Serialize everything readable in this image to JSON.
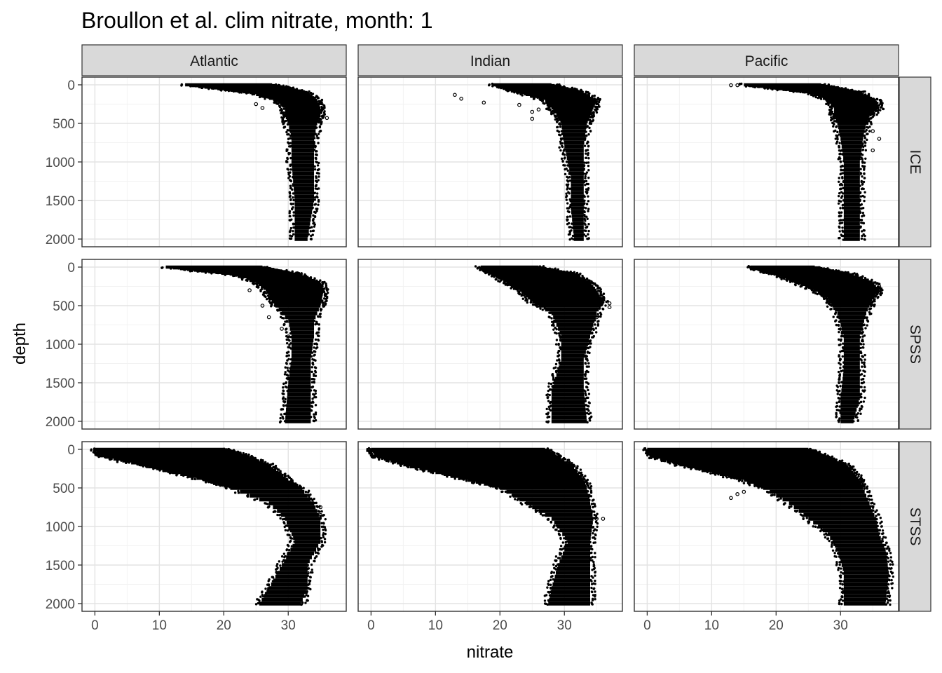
{
  "chart_data": {
    "type": "scatter",
    "title": "Broullon et al. clim nitrate, month: 1",
    "xlabel": "nitrate",
    "ylabel": "depth",
    "xlim": [
      -2,
      39
    ],
    "ylim": [
      2000,
      0
    ],
    "y_reversed": true,
    "xticks": [
      0,
      10,
      20,
      30
    ],
    "yticks": [
      0,
      500,
      1000,
      1500,
      2000
    ],
    "grid": true,
    "point_color": "#000000",
    "strip_fill": "#d9d9d9",
    "facet_cols": [
      "Atlantic",
      "Indian",
      "Pacific"
    ],
    "facet_rows": [
      "ICE",
      "SPSS",
      "STSS"
    ],
    "panels": [
      {
        "col": "Atlantic",
        "row": "ICE",
        "profile": [
          [
            0,
            14,
            27.5
          ],
          [
            100,
            24,
            33
          ],
          [
            200,
            28,
            34.5
          ],
          [
            300,
            29.5,
            35
          ],
          [
            400,
            29.5,
            35
          ],
          [
            500,
            30,
            34.5
          ],
          [
            700,
            30.5,
            34
          ],
          [
            1000,
            30.5,
            34
          ],
          [
            1500,
            31,
            34
          ],
          [
            2000,
            31,
            33
          ]
        ],
        "outliers": [
          [
            36,
            430
          ],
          [
            25,
            250
          ],
          [
            26,
            300
          ]
        ]
      },
      {
        "col": "Indian",
        "row": "ICE",
        "profile": [
          [
            0,
            19,
            28
          ],
          [
            100,
            23,
            33
          ],
          [
            200,
            27,
            35
          ],
          [
            300,
            28,
            34.5
          ],
          [
            400,
            29,
            34
          ],
          [
            500,
            29.5,
            33.5
          ],
          [
            800,
            30,
            33
          ],
          [
            1200,
            31,
            33
          ],
          [
            1600,
            31,
            33
          ],
          [
            2000,
            31.5,
            33
          ]
        ],
        "outliers": [
          [
            13,
            130
          ],
          [
            14,
            180
          ],
          [
            17.5,
            230
          ],
          [
            23,
            260
          ],
          [
            25,
            350
          ],
          [
            26,
            320
          ],
          [
            25,
            440
          ]
        ]
      },
      {
        "col": "Pacific",
        "row": "ICE",
        "profile": [
          [
            0,
            15,
            27
          ],
          [
            100,
            25,
            33
          ],
          [
            200,
            28,
            35.5
          ],
          [
            300,
            29,
            36
          ],
          [
            400,
            29,
            34.5
          ],
          [
            500,
            29.5,
            34
          ],
          [
            700,
            30,
            33.5
          ],
          [
            1000,
            30.5,
            33
          ],
          [
            1500,
            30.5,
            33
          ],
          [
            2000,
            30.5,
            33
          ]
        ],
        "outliers": [
          [
            13,
            5
          ],
          [
            14,
            5
          ],
          [
            35,
            600
          ],
          [
            36,
            700
          ],
          [
            35,
            850
          ],
          [
            33,
            950
          ],
          [
            33,
            1150
          ],
          [
            30,
            450
          ]
        ]
      },
      {
        "col": "Atlantic",
        "row": "SPSS",
        "profile": [
          [
            0,
            11,
            26
          ],
          [
            100,
            22,
            32
          ],
          [
            200,
            25,
            35
          ],
          [
            300,
            26.5,
            35.5
          ],
          [
            500,
            28,
            35
          ],
          [
            700,
            30,
            34
          ],
          [
            900,
            30.5,
            34
          ],
          [
            1200,
            30.5,
            33.5
          ],
          [
            1500,
            30,
            33.5
          ],
          [
            2000,
            29.5,
            33.5
          ]
        ],
        "outliers": [
          [
            24,
            300
          ],
          [
            26,
            500
          ],
          [
            27,
            650
          ],
          [
            29,
            800
          ],
          [
            30,
            900
          ]
        ]
      },
      {
        "col": "Indian",
        "row": "SPSS",
        "profile": [
          [
            0,
            17,
            26
          ],
          [
            100,
            19,
            32
          ],
          [
            200,
            21,
            34
          ],
          [
            300,
            23,
            35
          ],
          [
            450,
            25,
            36
          ],
          [
            600,
            28,
            35
          ],
          [
            900,
            29.5,
            34
          ],
          [
            1200,
            29.5,
            33
          ],
          [
            1600,
            28,
            33
          ],
          [
            2000,
            28,
            33.5
          ]
        ],
        "outliers": [
          [
            37,
            470
          ],
          [
            37,
            520
          ],
          [
            35,
            650
          ]
        ]
      },
      {
        "col": "Pacific",
        "row": "SPSS",
        "profile": [
          [
            0,
            16,
            26
          ],
          [
            100,
            20,
            32
          ],
          [
            200,
            23,
            35
          ],
          [
            300,
            26,
            36
          ],
          [
            400,
            28,
            35
          ],
          [
            600,
            29.5,
            34
          ],
          [
            900,
            30.5,
            33
          ],
          [
            1300,
            30.5,
            33
          ],
          [
            1700,
            30,
            33
          ],
          [
            2000,
            30,
            32
          ]
        ],
        "outliers": [
          [
            36,
            250
          ],
          [
            36,
            330
          ]
        ]
      },
      {
        "col": "Atlantic",
        "row": "STSS",
        "profile": [
          [
            0,
            0,
            20
          ],
          [
            100,
            1.5,
            24
          ],
          [
            200,
            7,
            27
          ],
          [
            300,
            12,
            28.5
          ],
          [
            400,
            17,
            30
          ],
          [
            500,
            21,
            32
          ],
          [
            700,
            27,
            34
          ],
          [
            900,
            29.5,
            35
          ],
          [
            1200,
            31,
            35
          ],
          [
            1500,
            29,
            33
          ],
          [
            1800,
            27,
            33
          ],
          [
            2000,
            25.5,
            32
          ]
        ],
        "outliers": [
          [
            35,
            750
          ],
          [
            35,
            850
          ],
          [
            33,
            1600
          ],
          [
            32,
            1900
          ],
          [
            32,
            2000
          ]
        ]
      },
      {
        "col": "Indian",
        "row": "STSS",
        "profile": [
          [
            0,
            0,
            27
          ],
          [
            100,
            1,
            29
          ],
          [
            200,
            5,
            31
          ],
          [
            300,
            10,
            32
          ],
          [
            400,
            15,
            33
          ],
          [
            500,
            20,
            33.5
          ],
          [
            700,
            24,
            34
          ],
          [
            900,
            28,
            34.5
          ],
          [
            1200,
            30.5,
            34
          ],
          [
            1500,
            29,
            34
          ],
          [
            1800,
            28,
            34
          ],
          [
            2000,
            27.5,
            34
          ]
        ],
        "outliers": [
          [
            35,
            900
          ],
          [
            36,
            900
          ]
        ]
      },
      {
        "col": "Pacific",
        "row": "STSS",
        "profile": [
          [
            0,
            0,
            25
          ],
          [
            100,
            1,
            28
          ],
          [
            200,
            5,
            31
          ],
          [
            300,
            10,
            32
          ],
          [
            400,
            15,
            33
          ],
          [
            500,
            18,
            33.5
          ],
          [
            700,
            22,
            34.5
          ],
          [
            900,
            25,
            35.5
          ],
          [
            1100,
            28,
            36
          ],
          [
            1300,
            29.5,
            37
          ],
          [
            1600,
            30.5,
            37.5
          ],
          [
            2000,
            30.5,
            37
          ]
        ],
        "outliers": [
          [
            13,
            630
          ],
          [
            14,
            580
          ],
          [
            15,
            550
          ],
          [
            28.5,
            200
          ],
          [
            29.5,
            250
          ]
        ]
      }
    ]
  }
}
